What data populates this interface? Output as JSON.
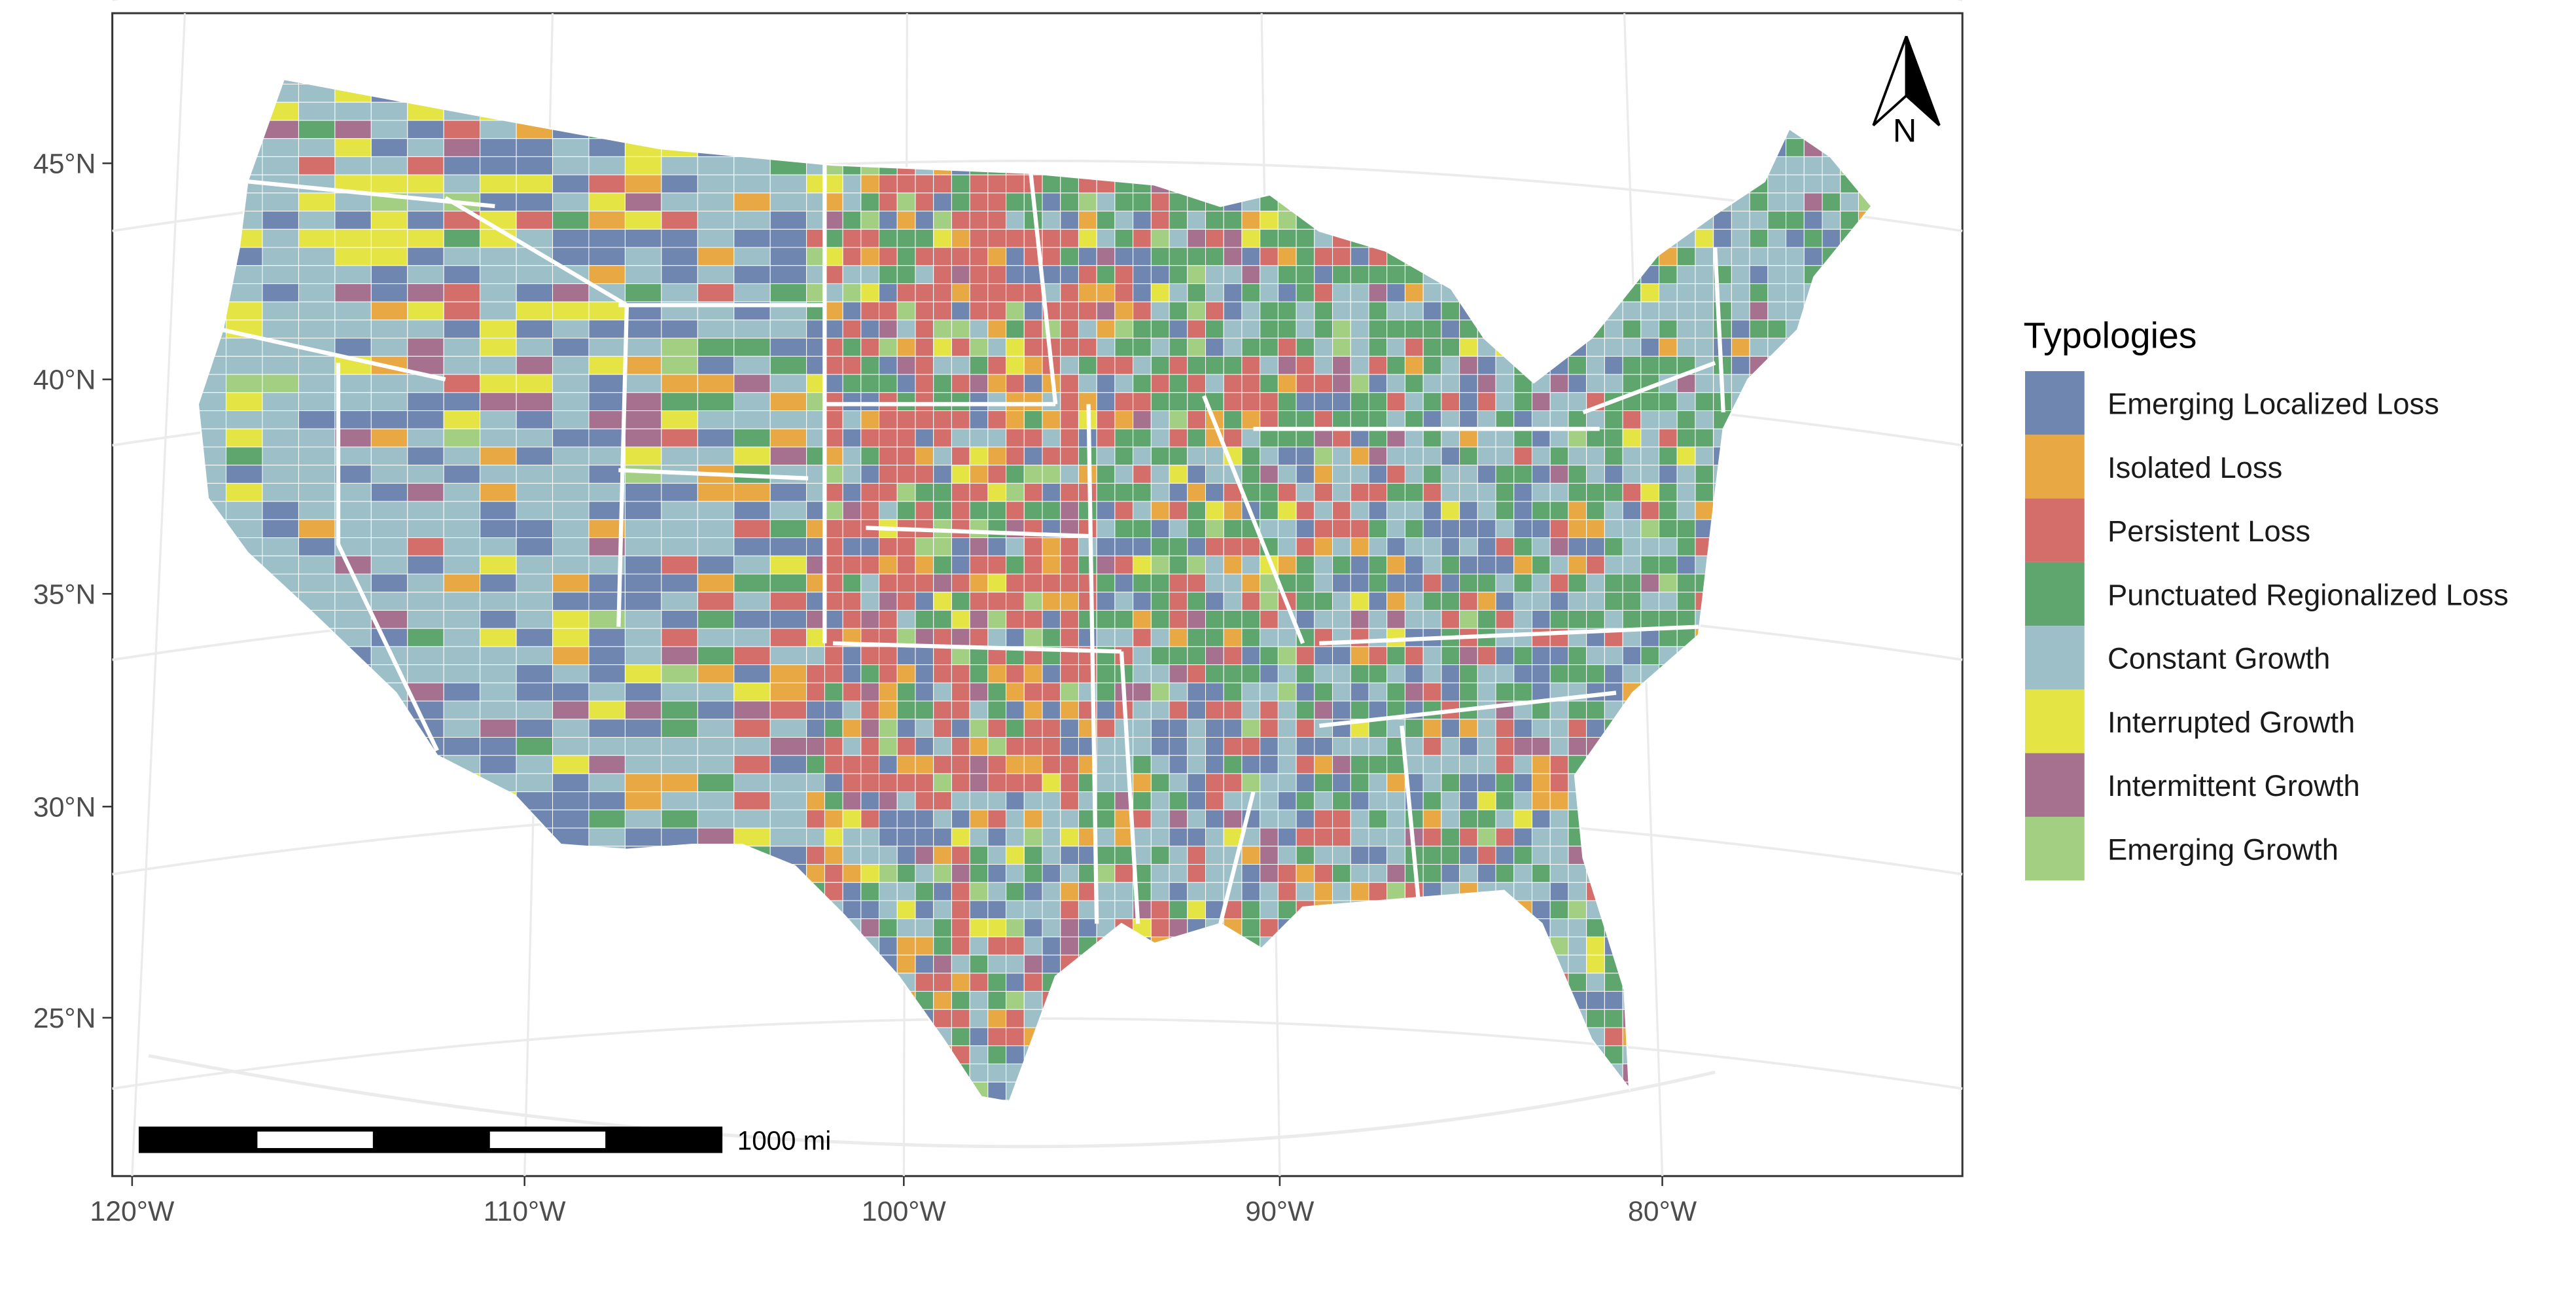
{
  "map": {
    "y_axis_labels": [
      "45°N",
      "40°N",
      "35°N",
      "30°N",
      "25°N"
    ],
    "x_axis_labels": [
      "120°W",
      "110°W",
      "100°W",
      "90°W",
      "80°W"
    ],
    "scale_bar_label": "1000 mi",
    "north_arrow_label": "N",
    "land_colors_note_free": true
  },
  "legend": {
    "title": "Typologies",
    "items": [
      {
        "label": "Emerging Localized Loss",
        "color": "#6f86b0"
      },
      {
        "label": "Isolated Loss",
        "color": "#e8a843"
      },
      {
        "label": "Persistent Loss",
        "color": "#d36e6a"
      },
      {
        "label": "Punctuated Regionalized Loss",
        "color": "#5fa56e"
      },
      {
        "label": "Constant Growth",
        "color": "#9dbfc7"
      },
      {
        "label": "Interrupted Growth",
        "color": "#e4e444"
      },
      {
        "label": "Intermittent Growth",
        "color": "#a6718e"
      },
      {
        "label": "Emerging Growth",
        "color": "#a3cf82"
      }
    ]
  }
}
